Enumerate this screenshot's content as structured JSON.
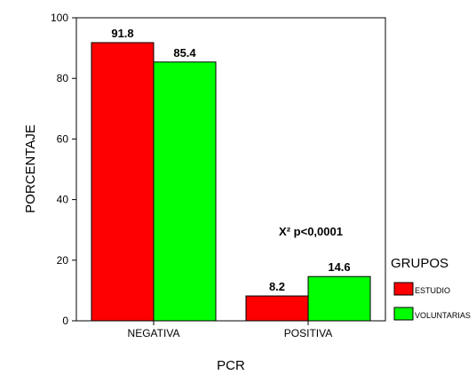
{
  "chart_data": {
    "type": "bar",
    "categories": [
      "NEGATIVA",
      "POSITIVA"
    ],
    "series": [
      {
        "name": "ESTUDIO",
        "values": [
          91.8,
          8.2
        ],
        "color": "#ff0000"
      },
      {
        "name": "VOLUNTARIAS",
        "values": [
          85.4,
          14.6
        ],
        "color": "#00ff00"
      }
    ],
    "data_labels": [
      [
        "91.8",
        "8.2"
      ],
      [
        "85.4",
        "14.6"
      ]
    ],
    "xlabel": "PCR",
    "ylabel": "PORCENTAJE",
    "ylim": [
      0,
      100
    ],
    "yticks": [
      0,
      20,
      40,
      60,
      80,
      100
    ],
    "grid": false,
    "legend": {
      "title": "GRUPOS",
      "placement": "right"
    },
    "annotation": "X² p<0,0001"
  }
}
